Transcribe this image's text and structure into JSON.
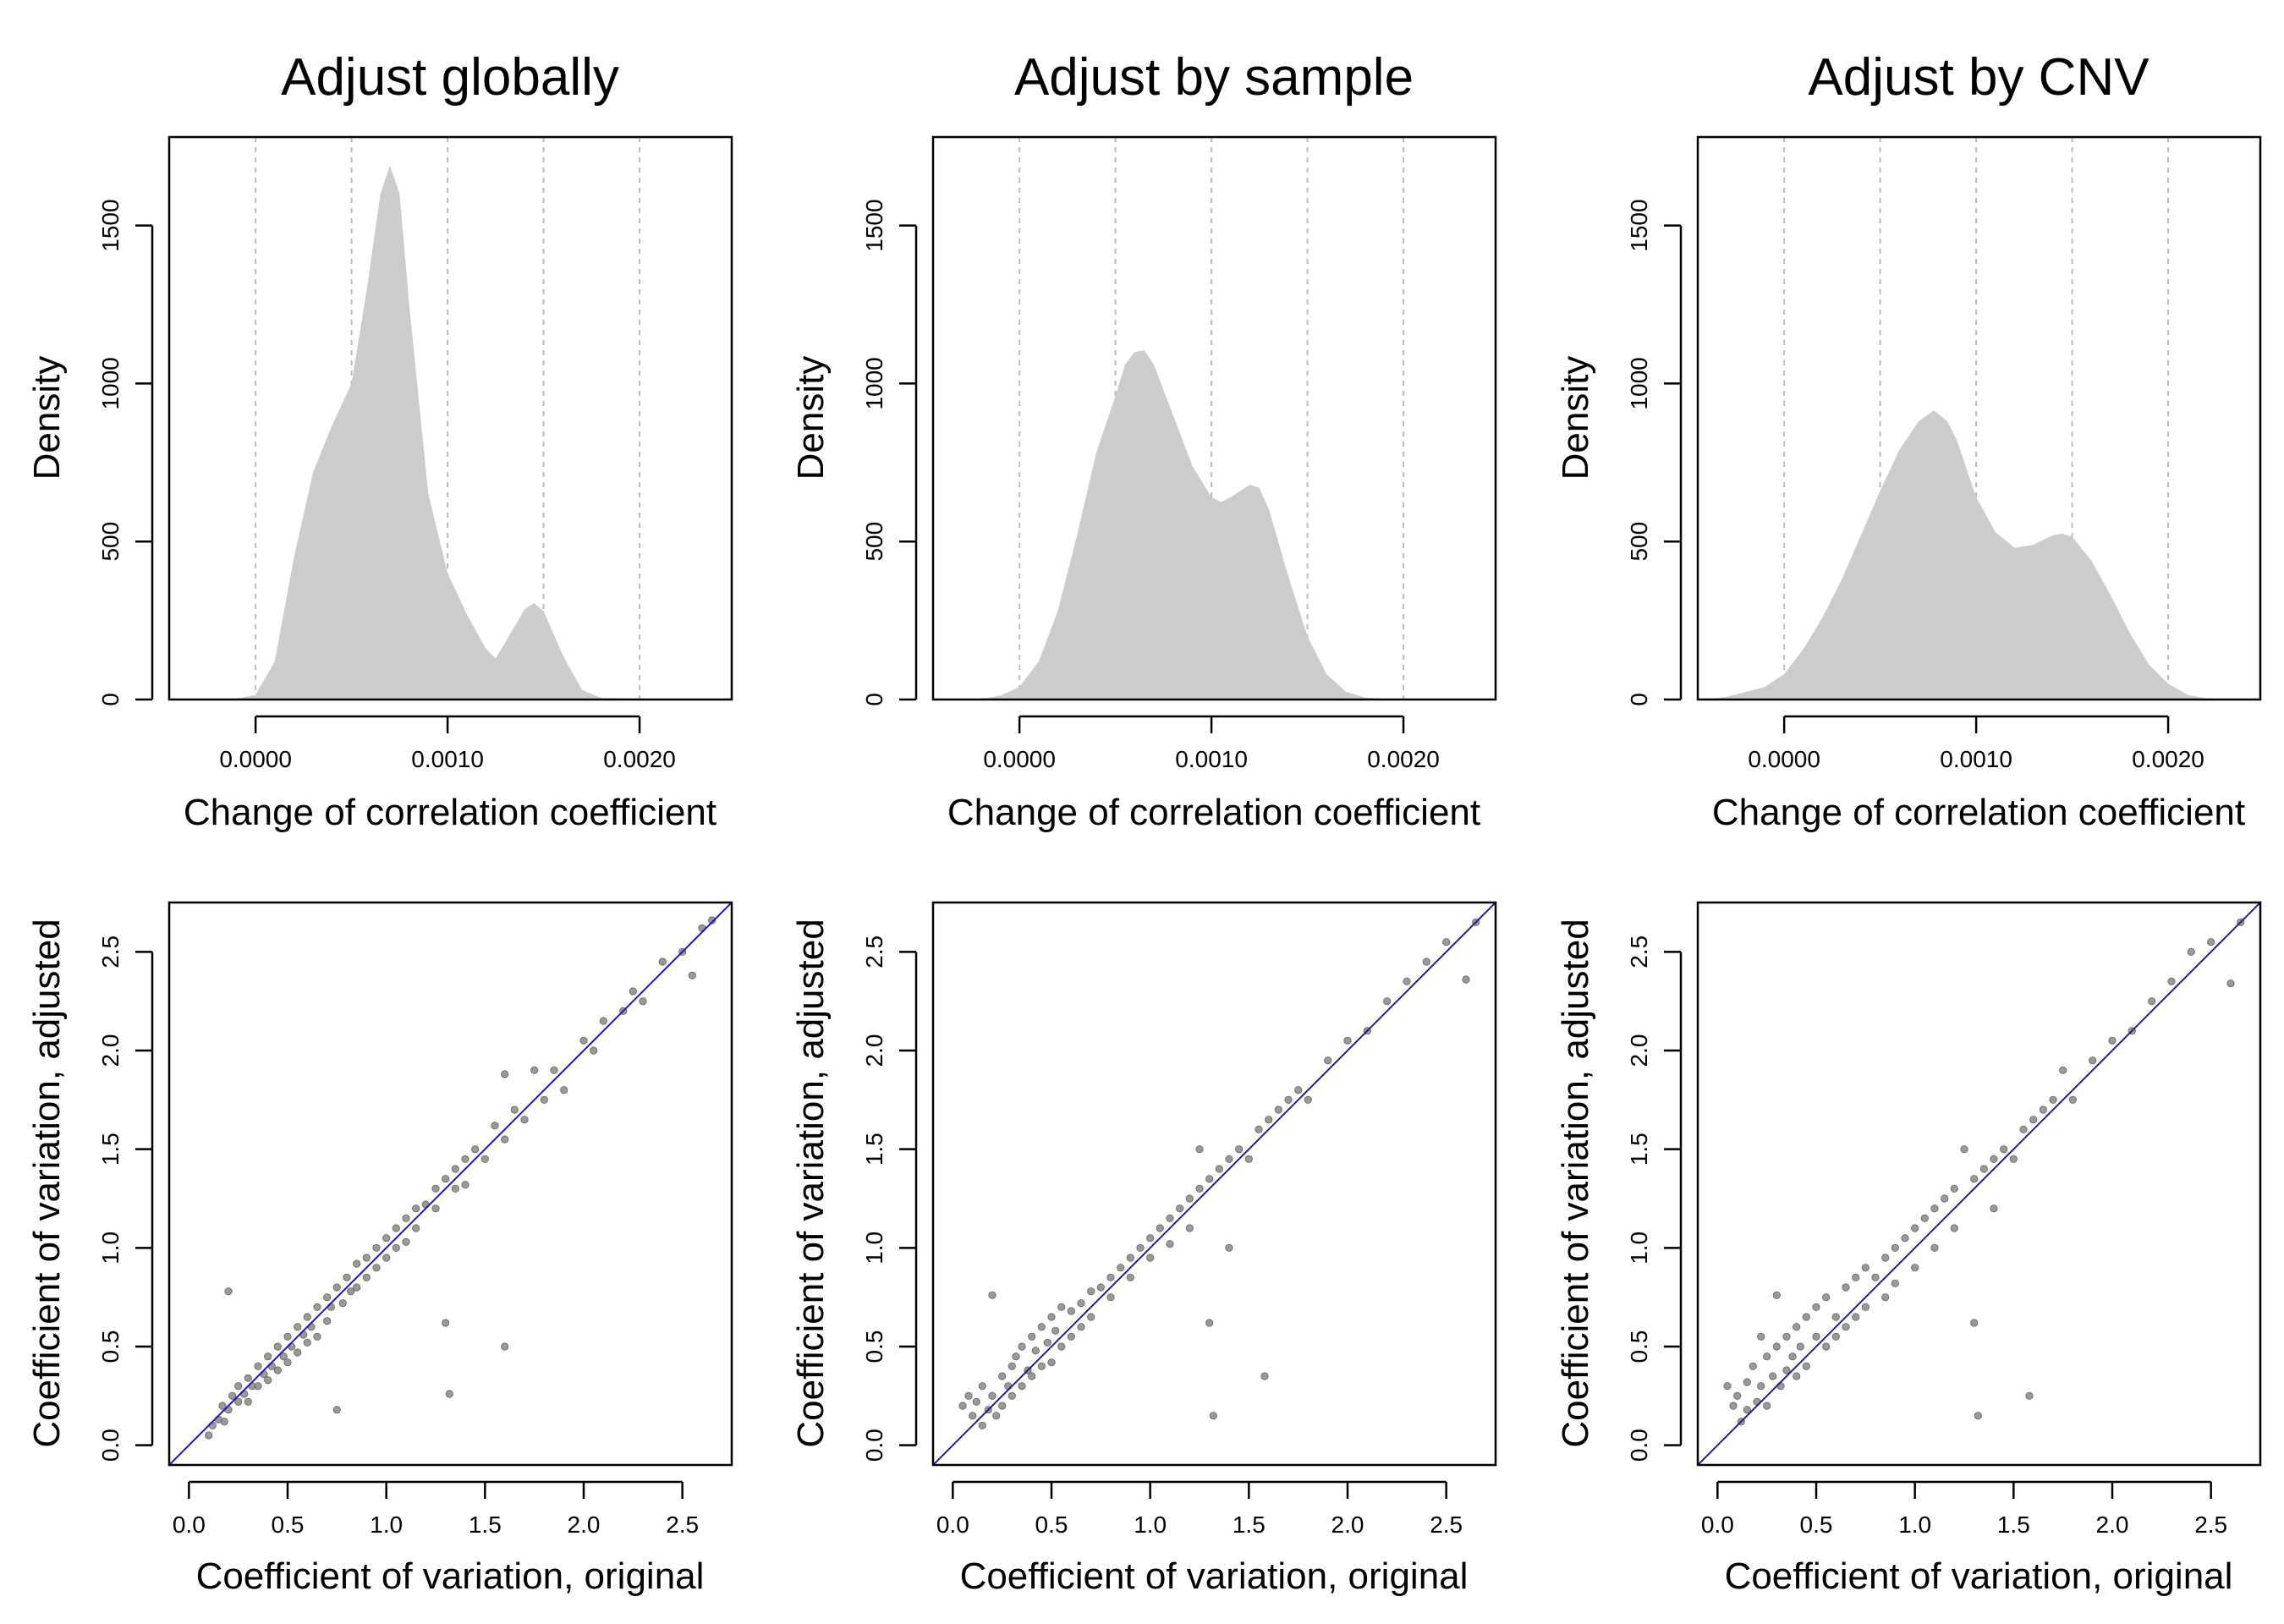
{
  "colors": {
    "density_fill": "#cccccc",
    "scatter_point": "#7f7f7f",
    "identity_line": "#1a1aaa",
    "grid_line": "#bbbbbb"
  },
  "chart_data": [
    {
      "type": "area",
      "title": "Adjust globally",
      "xlabel": "Change of correlation coefficient",
      "ylabel": "Density",
      "xlim": [
        -0.00045,
        0.00248
      ],
      "ylim": [
        0,
        1780
      ],
      "xticks": [
        0.0,
        0.001,
        0.002
      ],
      "xtick_labels": [
        "0.0000",
        "0.0010",
        "0.0020"
      ],
      "yticks": [
        0,
        500,
        1000,
        1500
      ],
      "ytick_labels": [
        "0",
        "500",
        "1000",
        "1500"
      ],
      "vgrid": [
        0.0,
        0.0005,
        0.001,
        0.0015,
        0.002
      ],
      "grid": "vertical dashed",
      "x": [
        -0.00045,
        -0.0001,
        0.0,
        0.0001,
        0.0002,
        0.0003,
        0.0004,
        0.0005,
        0.00058,
        0.00065,
        0.0007,
        0.00075,
        0.0008,
        0.0009,
        0.001,
        0.0011,
        0.0012,
        0.00125,
        0.0013,
        0.0014,
        0.00145,
        0.0015,
        0.0016,
        0.0017,
        0.0018,
        0.0022,
        0.00248
      ],
      "y": [
        0,
        2,
        15,
        120,
        450,
        720,
        870,
        1000,
        1300,
        1600,
        1690,
        1600,
        1250,
        650,
        400,
        270,
        160,
        130,
        180,
        285,
        305,
        280,
        140,
        30,
        5,
        0,
        0
      ]
    },
    {
      "type": "area",
      "title": "Adjust by sample",
      "xlabel": "Change of correlation coefficient",
      "ylabel": "Density",
      "xlim": [
        -0.00045,
        0.00248
      ],
      "ylim": [
        0,
        1780
      ],
      "xticks": [
        0.0,
        0.001,
        0.002
      ],
      "xtick_labels": [
        "0.0000",
        "0.0010",
        "0.0020"
      ],
      "yticks": [
        0,
        500,
        1000,
        1500
      ],
      "ytick_labels": [
        "0",
        "500",
        "1000",
        "1500"
      ],
      "vgrid": [
        0.0,
        0.0005,
        0.001,
        0.0015,
        0.002
      ],
      "grid": "vertical dashed",
      "x": [
        -0.00045,
        -0.0002,
        -0.0001,
        0.0,
        0.0001,
        0.0002,
        0.0003,
        0.0004,
        0.0005,
        0.00055,
        0.0006,
        0.00065,
        0.0007,
        0.0008,
        0.0009,
        0.001,
        0.00105,
        0.0011,
        0.0012,
        0.00125,
        0.0013,
        0.0014,
        0.0015,
        0.0016,
        0.0017,
        0.0018,
        0.0019,
        0.002,
        0.00248
      ],
      "y": [
        0,
        2,
        12,
        40,
        120,
        280,
        520,
        780,
        960,
        1060,
        1100,
        1105,
        1060,
        900,
        740,
        640,
        625,
        640,
        680,
        670,
        600,
        390,
        200,
        80,
        25,
        6,
        2,
        0,
        0
      ]
    },
    {
      "type": "area",
      "title": "Adjust by CNV",
      "xlabel": "Change of correlation coefficient",
      "ylabel": "Density",
      "xlim": [
        -0.00045,
        0.00248
      ],
      "ylim": [
        0,
        1780
      ],
      "xticks": [
        0.0,
        0.001,
        0.002
      ],
      "xtick_labels": [
        "0.0000",
        "0.0010",
        "0.0020"
      ],
      "yticks": [
        0,
        500,
        1000,
        1500
      ],
      "ytick_labels": [
        "0",
        "500",
        "1000",
        "1500"
      ],
      "vgrid": [
        0.0,
        0.0005,
        0.001,
        0.0015,
        0.002
      ],
      "grid": "vertical dashed",
      "x": [
        -0.00045,
        -0.0003,
        -0.0001,
        0.0,
        0.0001,
        0.0002,
        0.0003,
        0.0004,
        0.0005,
        0.0006,
        0.0007,
        0.00078,
        0.00085,
        0.0009,
        0.001,
        0.0011,
        0.0012,
        0.0013,
        0.0014,
        0.00145,
        0.0015,
        0.0016,
        0.0017,
        0.0018,
        0.0019,
        0.002,
        0.0021,
        0.0022,
        0.00248
      ],
      "y": [
        0,
        8,
        40,
        80,
        160,
        260,
        380,
        520,
        660,
        790,
        880,
        915,
        880,
        820,
        640,
        530,
        480,
        490,
        520,
        525,
        515,
        440,
        330,
        210,
        110,
        50,
        15,
        3,
        0
      ]
    },
    {
      "type": "scatter",
      "xlabel": "Coefficient of variation, original",
      "ylabel": "Coefficient of variation, adjusted",
      "xlim": [
        -0.1,
        2.75
      ],
      "ylim": [
        -0.1,
        2.75
      ],
      "xticks": [
        0.0,
        0.5,
        1.0,
        1.5,
        2.0,
        2.5
      ],
      "xtick_labels": [
        "0.0",
        "0.5",
        "1.0",
        "1.5",
        "2.0",
        "2.5"
      ],
      "yticks": [
        0.0,
        0.5,
        1.0,
        1.5,
        2.0,
        2.5
      ],
      "ytick_labels": [
        "0.0",
        "0.5",
        "1.0",
        "1.5",
        "2.0",
        "2.5"
      ],
      "identity_line": true,
      "points": [
        [
          0.1,
          0.05
        ],
        [
          0.12,
          0.1
        ],
        [
          0.15,
          0.13
        ],
        [
          0.17,
          0.2
        ],
        [
          0.18,
          0.12
        ],
        [
          0.2,
          0.18
        ],
        [
          0.2,
          0.78
        ],
        [
          0.22,
          0.25
        ],
        [
          0.25,
          0.22
        ],
        [
          0.25,
          0.3
        ],
        [
          0.28,
          0.26
        ],
        [
          0.3,
          0.34
        ],
        [
          0.3,
          0.22
        ],
        [
          0.32,
          0.3
        ],
        [
          0.35,
          0.4
        ],
        [
          0.35,
          0.3
        ],
        [
          0.38,
          0.36
        ],
        [
          0.4,
          0.45
        ],
        [
          0.4,
          0.33
        ],
        [
          0.42,
          0.4
        ],
        [
          0.45,
          0.5
        ],
        [
          0.45,
          0.38
        ],
        [
          0.48,
          0.45
        ],
        [
          0.5,
          0.55
        ],
        [
          0.5,
          0.42
        ],
        [
          0.52,
          0.5
        ],
        [
          0.55,
          0.6
        ],
        [
          0.55,
          0.47
        ],
        [
          0.58,
          0.56
        ],
        [
          0.6,
          0.65
        ],
        [
          0.6,
          0.52
        ],
        [
          0.62,
          0.6
        ],
        [
          0.65,
          0.7
        ],
        [
          0.65,
          0.55
        ],
        [
          0.7,
          0.75
        ],
        [
          0.7,
          0.63
        ],
        [
          0.72,
          0.7
        ],
        [
          0.75,
          0.18
        ],
        [
          0.75,
          0.8
        ],
        [
          0.78,
          0.72
        ],
        [
          0.8,
          0.85
        ],
        [
          0.82,
          0.78
        ],
        [
          0.85,
          0.92
        ],
        [
          0.85,
          0.8
        ],
        [
          0.9,
          0.95
        ],
        [
          0.9,
          0.85
        ],
        [
          0.95,
          1.0
        ],
        [
          0.95,
          0.9
        ],
        [
          1.0,
          1.05
        ],
        [
          1.0,
          0.95
        ],
        [
          1.05,
          1.1
        ],
        [
          1.05,
          1.0
        ],
        [
          1.1,
          1.15
        ],
        [
          1.1,
          1.03
        ],
        [
          1.15,
          1.2
        ],
        [
          1.15,
          1.1
        ],
        [
          1.2,
          1.22
        ],
        [
          1.25,
          1.3
        ],
        [
          1.25,
          1.2
        ],
        [
          1.3,
          1.35
        ],
        [
          1.3,
          0.62
        ],
        [
          1.32,
          0.26
        ],
        [
          1.35,
          1.4
        ],
        [
          1.35,
          1.3
        ],
        [
          1.4,
          1.45
        ],
        [
          1.4,
          1.32
        ],
        [
          1.45,
          1.5
        ],
        [
          1.5,
          1.45
        ],
        [
          1.55,
          1.62
        ],
        [
          1.6,
          1.88
        ],
        [
          1.6,
          1.55
        ],
        [
          1.6,
          0.5
        ],
        [
          1.65,
          1.7
        ],
        [
          1.7,
          1.65
        ],
        [
          1.75,
          1.9
        ],
        [
          1.8,
          1.75
        ],
        [
          1.85,
          1.9
        ],
        [
          1.9,
          1.8
        ],
        [
          2.0,
          2.05
        ],
        [
          2.05,
          2.0
        ],
        [
          2.1,
          2.15
        ],
        [
          2.2,
          2.2
        ],
        [
          2.25,
          2.3
        ],
        [
          2.3,
          2.25
        ],
        [
          2.4,
          2.45
        ],
        [
          2.5,
          2.5
        ],
        [
          2.55,
          2.38
        ],
        [
          2.6,
          2.62
        ],
        [
          2.65,
          2.66
        ]
      ]
    },
    {
      "type": "scatter",
      "xlabel": "Coefficient of variation, original",
      "ylabel": "Coefficient of variation, adjusted",
      "xlim": [
        -0.1,
        2.75
      ],
      "ylim": [
        -0.1,
        2.75
      ],
      "xticks": [
        0.0,
        0.5,
        1.0,
        1.5,
        2.0,
        2.5
      ],
      "xtick_labels": [
        "0.0",
        "0.5",
        "1.0",
        "1.5",
        "2.0",
        "2.5"
      ],
      "yticks": [
        0.0,
        0.5,
        1.0,
        1.5,
        2.0,
        2.5
      ],
      "ytick_labels": [
        "0.0",
        "0.5",
        "1.0",
        "1.5",
        "2.0",
        "2.5"
      ],
      "identity_line": true,
      "points": [
        [
          0.05,
          0.2
        ],
        [
          0.08,
          0.25
        ],
        [
          0.1,
          0.15
        ],
        [
          0.12,
          0.22
        ],
        [
          0.15,
          0.1
        ],
        [
          0.15,
          0.3
        ],
        [
          0.18,
          0.18
        ],
        [
          0.2,
          0.76
        ],
        [
          0.2,
          0.25
        ],
        [
          0.22,
          0.15
        ],
        [
          0.25,
          0.35
        ],
        [
          0.25,
          0.2
        ],
        [
          0.28,
          0.3
        ],
        [
          0.3,
          0.4
        ],
        [
          0.3,
          0.25
        ],
        [
          0.32,
          0.45
        ],
        [
          0.35,
          0.3
        ],
        [
          0.35,
          0.5
        ],
        [
          0.38,
          0.38
        ],
        [
          0.4,
          0.55
        ],
        [
          0.4,
          0.35
        ],
        [
          0.42,
          0.48
        ],
        [
          0.45,
          0.6
        ],
        [
          0.45,
          0.4
        ],
        [
          0.48,
          0.52
        ],
        [
          0.5,
          0.65
        ],
        [
          0.5,
          0.42
        ],
        [
          0.52,
          0.58
        ],
        [
          0.55,
          0.7
        ],
        [
          0.55,
          0.5
        ],
        [
          0.6,
          0.68
        ],
        [
          0.6,
          0.55
        ],
        [
          0.65,
          0.72
        ],
        [
          0.65,
          0.6
        ],
        [
          0.7,
          0.78
        ],
        [
          0.7,
          0.65
        ],
        [
          0.75,
          0.8
        ],
        [
          0.8,
          0.85
        ],
        [
          0.8,
          0.75
        ],
        [
          0.85,
          0.9
        ],
        [
          0.9,
          0.95
        ],
        [
          0.9,
          0.85
        ],
        [
          0.95,
          1.0
        ],
        [
          1.0,
          1.05
        ],
        [
          1.0,
          0.95
        ],
        [
          1.05,
          1.1
        ],
        [
          1.1,
          1.15
        ],
        [
          1.1,
          1.02
        ],
        [
          1.15,
          1.2
        ],
        [
          1.2,
          1.25
        ],
        [
          1.2,
          1.1
        ],
        [
          1.25,
          1.3
        ],
        [
          1.25,
          1.5
        ],
        [
          1.3,
          1.35
        ],
        [
          1.3,
          0.62
        ],
        [
          1.32,
          0.15
        ],
        [
          1.35,
          1.4
        ],
        [
          1.4,
          1.45
        ],
        [
          1.4,
          1.0
        ],
        [
          1.45,
          1.5
        ],
        [
          1.5,
          1.45
        ],
        [
          1.55,
          1.6
        ],
        [
          1.58,
          0.35
        ],
        [
          1.6,
          1.65
        ],
        [
          1.65,
          1.7
        ],
        [
          1.7,
          1.75
        ],
        [
          1.75,
          1.8
        ],
        [
          1.8,
          1.75
        ],
        [
          1.9,
          1.95
        ],
        [
          2.0,
          2.05
        ],
        [
          2.1,
          2.1
        ],
        [
          2.2,
          2.25
        ],
        [
          2.3,
          2.35
        ],
        [
          2.4,
          2.45
        ],
        [
          2.5,
          2.55
        ],
        [
          2.6,
          2.36
        ],
        [
          2.65,
          2.65
        ]
      ]
    },
    {
      "type": "scatter",
      "xlabel": "Coefficient of variation, original",
      "ylabel": "Coefficient of variation, adjusted",
      "xlim": [
        -0.1,
        2.75
      ],
      "ylim": [
        -0.1,
        2.75
      ],
      "xticks": [
        0.0,
        0.5,
        1.0,
        1.5,
        2.0,
        2.5
      ],
      "xtick_labels": [
        "0.0",
        "0.5",
        "1.0",
        "1.5",
        "2.0",
        "2.5"
      ],
      "yticks": [
        0.0,
        0.5,
        1.0,
        1.5,
        2.0,
        2.5
      ],
      "ytick_labels": [
        "0.0",
        "0.5",
        "1.0",
        "1.5",
        "2.0",
        "2.5"
      ],
      "identity_line": true,
      "points": [
        [
          0.05,
          0.3
        ],
        [
          0.08,
          0.2
        ],
        [
          0.1,
          0.25
        ],
        [
          0.12,
          0.12
        ],
        [
          0.15,
          0.32
        ],
        [
          0.15,
          0.18
        ],
        [
          0.18,
          0.4
        ],
        [
          0.2,
          0.22
        ],
        [
          0.22,
          0.3
        ],
        [
          0.22,
          0.55
        ],
        [
          0.25,
          0.45
        ],
        [
          0.25,
          0.2
        ],
        [
          0.28,
          0.35
        ],
        [
          0.3,
          0.76
        ],
        [
          0.3,
          0.5
        ],
        [
          0.32,
          0.3
        ],
        [
          0.35,
          0.55
        ],
        [
          0.35,
          0.38
        ],
        [
          0.38,
          0.45
        ],
        [
          0.4,
          0.6
        ],
        [
          0.4,
          0.35
        ],
        [
          0.42,
          0.5
        ],
        [
          0.45,
          0.65
        ],
        [
          0.45,
          0.4
        ],
        [
          0.5,
          0.55
        ],
        [
          0.5,
          0.7
        ],
        [
          0.55,
          0.5
        ],
        [
          0.55,
          0.75
        ],
        [
          0.6,
          0.65
        ],
        [
          0.6,
          0.55
        ],
        [
          0.65,
          0.8
        ],
        [
          0.65,
          0.6
        ],
        [
          0.7,
          0.85
        ],
        [
          0.7,
          0.65
        ],
        [
          0.75,
          0.9
        ],
        [
          0.75,
          0.7
        ],
        [
          0.8,
          0.85
        ],
        [
          0.85,
          0.95
        ],
        [
          0.85,
          0.75
        ],
        [
          0.9,
          1.0
        ],
        [
          0.9,
          0.82
        ],
        [
          0.95,
          1.05
        ],
        [
          1.0,
          1.1
        ],
        [
          1.0,
          0.9
        ],
        [
          1.05,
          1.15
        ],
        [
          1.1,
          1.2
        ],
        [
          1.1,
          1.0
        ],
        [
          1.15,
          1.25
        ],
        [
          1.2,
          1.3
        ],
        [
          1.2,
          1.1
        ],
        [
          1.25,
          1.5
        ],
        [
          1.3,
          1.35
        ],
        [
          1.3,
          0.62
        ],
        [
          1.32,
          0.15
        ],
        [
          1.35,
          1.4
        ],
        [
          1.4,
          1.45
        ],
        [
          1.4,
          1.2
        ],
        [
          1.45,
          1.5
        ],
        [
          1.5,
          1.45
        ],
        [
          1.55,
          1.6
        ],
        [
          1.58,
          0.25
        ],
        [
          1.6,
          1.65
        ],
        [
          1.65,
          1.7
        ],
        [
          1.7,
          1.75
        ],
        [
          1.75,
          1.9
        ],
        [
          1.8,
          1.75
        ],
        [
          1.9,
          1.95
        ],
        [
          2.0,
          2.05
        ],
        [
          2.1,
          2.1
        ],
        [
          2.2,
          2.25
        ],
        [
          2.3,
          2.35
        ],
        [
          2.4,
          2.5
        ],
        [
          2.5,
          2.55
        ],
        [
          2.6,
          2.34
        ],
        [
          2.65,
          2.65
        ]
      ]
    }
  ]
}
